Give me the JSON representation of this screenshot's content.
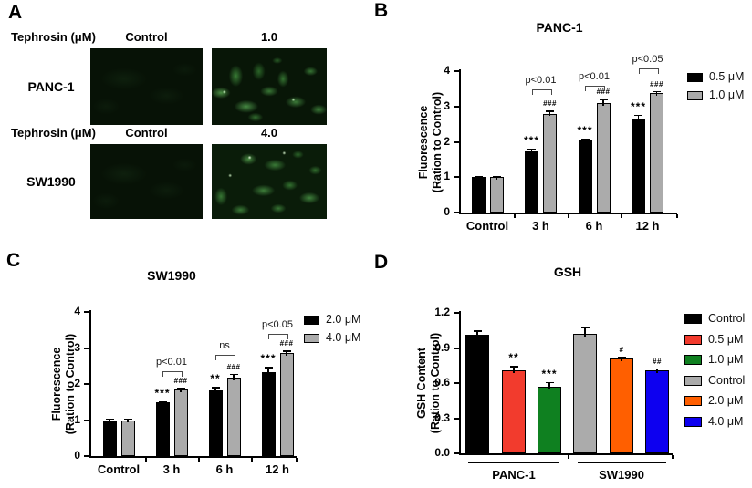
{
  "letters": {
    "a": "A",
    "b": "B",
    "c": "C",
    "d": "D"
  },
  "panel_a": {
    "rows": [
      {
        "reagent_label": "Tephrosin (μM)",
        "col_headers": [
          "Control",
          "1.0"
        ],
        "cell_line": "PANC-1"
      },
      {
        "reagent_label": "Tephrosin (μM)",
        "col_headers": [
          "Control",
          "4.0"
        ],
        "cell_line": "SW1990"
      }
    ]
  },
  "chart_data": [
    {
      "panel": "B",
      "type": "bar",
      "title": "PANC-1",
      "ylabel": [
        "Fluorescence",
        "(Ration to Control)"
      ],
      "categories": [
        "Control",
        "3 h",
        "6 h",
        "12 h"
      ],
      "series": [
        {
          "name": "0.5 μM",
          "color": "#000000",
          "values": [
            1.0,
            1.75,
            2.05,
            2.67
          ],
          "errors": [
            0.03,
            0.06,
            0.05,
            0.1
          ],
          "sig": [
            "",
            "***",
            "***",
            "***"
          ]
        },
        {
          "name": "1.0 μM",
          "color": "#ABABAB",
          "values": [
            1.0,
            2.8,
            3.1,
            3.37
          ],
          "errors": [
            0.03,
            0.08,
            0.12,
            0.07
          ],
          "sig": [
            "",
            "###",
            "###",
            "###"
          ]
        }
      ],
      "ylim": [
        0,
        4
      ],
      "yticks": [
        "0",
        "1",
        "2",
        "3",
        "4"
      ],
      "brackets": [
        {
          "category_index": 1,
          "text": "p<0.01",
          "y": 3.48
        },
        {
          "category_index": 2,
          "text": "p<0.01",
          "y": 3.6
        },
        {
          "category_index": 3,
          "text": "p<0.05",
          "y": 4.08
        }
      ],
      "legend_position": "right"
    },
    {
      "panel": "C",
      "type": "bar",
      "title": "SW1990",
      "ylabel": [
        "Fluorescence",
        "(Ration to Control)"
      ],
      "categories": [
        "Control",
        "3 h",
        "6 h",
        "12 h"
      ],
      "series": [
        {
          "name": "2.0 μM",
          "color": "#000000",
          "values": [
            1.0,
            1.5,
            1.82,
            2.33
          ],
          "errors": [
            0.04,
            0.03,
            0.1,
            0.15
          ],
          "sig": [
            "",
            "***",
            "**",
            "***"
          ]
        },
        {
          "name": "4.0 μM",
          "color": "#ABABAB",
          "values": [
            1.0,
            1.85,
            2.18,
            2.87
          ],
          "errors": [
            0.04,
            0.06,
            0.1,
            0.06
          ],
          "sig": [
            "",
            "###",
            "###",
            "###"
          ]
        }
      ],
      "ylim": [
        0,
        4
      ],
      "yticks": [
        "0",
        "1",
        "2",
        "3",
        "4"
      ],
      "brackets": [
        {
          "category_index": 1,
          "text": "p<0.01",
          "y": 2.35
        },
        {
          "category_index": 2,
          "text": "ns",
          "y": 2.82
        },
        {
          "category_index": 3,
          "text": "p<0.05",
          "y": 3.4
        }
      ],
      "legend_position": "right"
    },
    {
      "panel": "D",
      "type": "bar",
      "title": "GSH",
      "ylabel": [
        "GSH Content",
        "(Ration to Control)"
      ],
      "groups": [
        {
          "label": "PANC-1",
          "bars": [
            {
              "name": "Control",
              "color": "#000000",
              "value": 1.01,
              "error": 0.04,
              "sig": ""
            },
            {
              "name": "0.5 μM",
              "color": "#F23B2D",
              "value": 0.71,
              "error": 0.035,
              "sig": "**"
            },
            {
              "name": "1.0 μM",
              "color": "#0F8020",
              "value": 0.57,
              "error": 0.04,
              "sig": "***"
            }
          ]
        },
        {
          "label": "SW1990",
          "bars": [
            {
              "name": "Control",
              "color": "#ABABAB",
              "value": 1.02,
              "error": 0.06,
              "sig": ""
            },
            {
              "name": "2.0 μM",
              "color": "#FF5F00",
              "value": 0.81,
              "error": 0.02,
              "sig": "#"
            },
            {
              "name": "4.0 μM",
              "color": "#0D00F0",
              "value": 0.71,
              "error": 0.015,
              "sig": "##"
            }
          ]
        }
      ],
      "ylim": [
        0,
        1.2
      ],
      "yticks": [
        "0.0",
        "0.3",
        "0.6",
        "0.9",
        "1.2"
      ],
      "legend": [
        {
          "label": "Control",
          "color": "#000000"
        },
        {
          "label": "0.5 μM",
          "color": "#F23B2D"
        },
        {
          "label": "1.0 μM",
          "color": "#0F8020"
        },
        {
          "label": "Control",
          "color": "#ABABAB"
        },
        {
          "label": "2.0 μM",
          "color": "#FF5F00"
        },
        {
          "label": "4.0 μM",
          "color": "#0D00F0"
        }
      ],
      "legend_position": "right"
    }
  ]
}
